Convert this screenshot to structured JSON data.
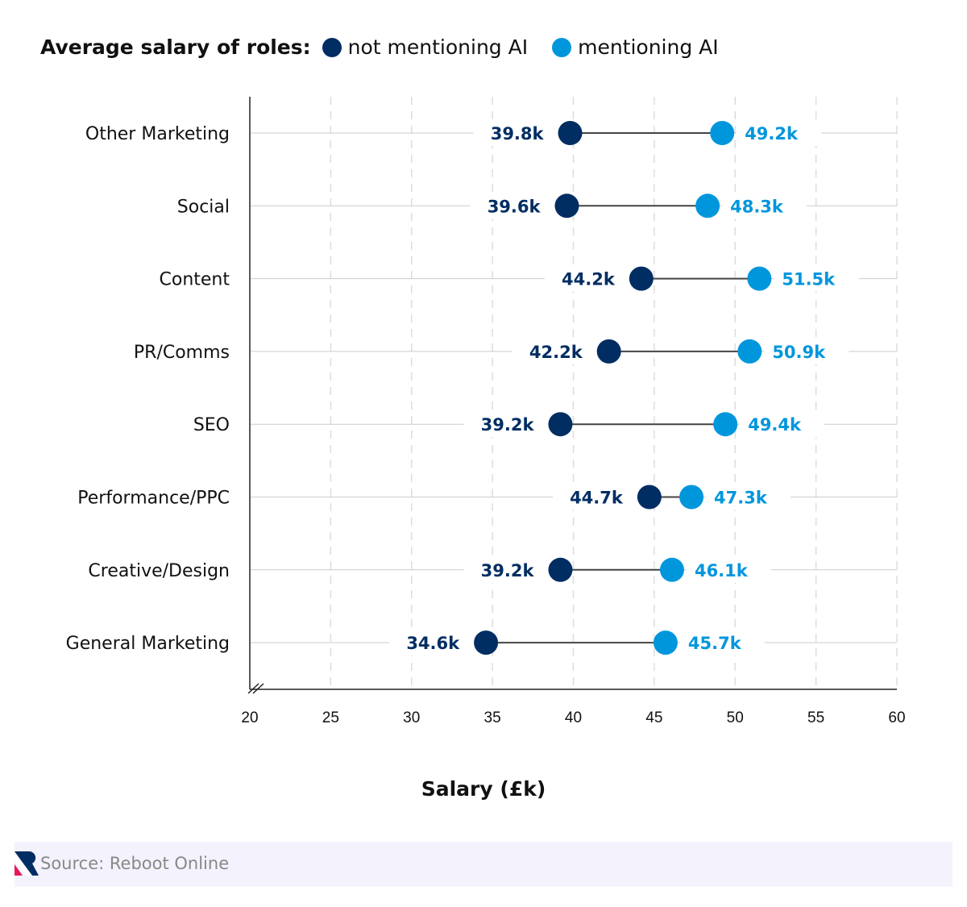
{
  "chart_data": {
    "type": "dumbbell",
    "title": "Average salary of roles:",
    "xlabel": "Salary (£k)",
    "xlim": [
      20,
      60
    ],
    "xticks": [
      20,
      25,
      30,
      35,
      40,
      45,
      50,
      55,
      60
    ],
    "grid": "vertical dashed",
    "legend_placement": "top",
    "categories": [
      "Other Marketing",
      "Social",
      "Content",
      "PR/Comms",
      "SEO",
      "Performance/PPC",
      "Creative/Design",
      "General Marketing"
    ],
    "series": [
      {
        "name": "not mentioning AI",
        "color": "#002d62",
        "values": [
          39.8,
          39.6,
          44.2,
          42.2,
          39.2,
          44.7,
          39.2,
          34.6
        ],
        "labels": [
          "39.8k",
          "39.6k",
          "44.2k",
          "42.2k",
          "39.2k",
          "44.7k",
          "39.2k",
          "34.6k"
        ]
      },
      {
        "name": "mentioning AI",
        "color": "#0096dc",
        "values": [
          49.2,
          48.3,
          51.5,
          50.9,
          49.4,
          47.3,
          46.1,
          45.7
        ],
        "labels": [
          "49.2k",
          "48.3k",
          "51.5k",
          "50.9k",
          "49.4k",
          "47.3k",
          "46.1k",
          "45.7k"
        ]
      }
    ]
  },
  "footer": {
    "source": "Source: Reboot Online"
  }
}
